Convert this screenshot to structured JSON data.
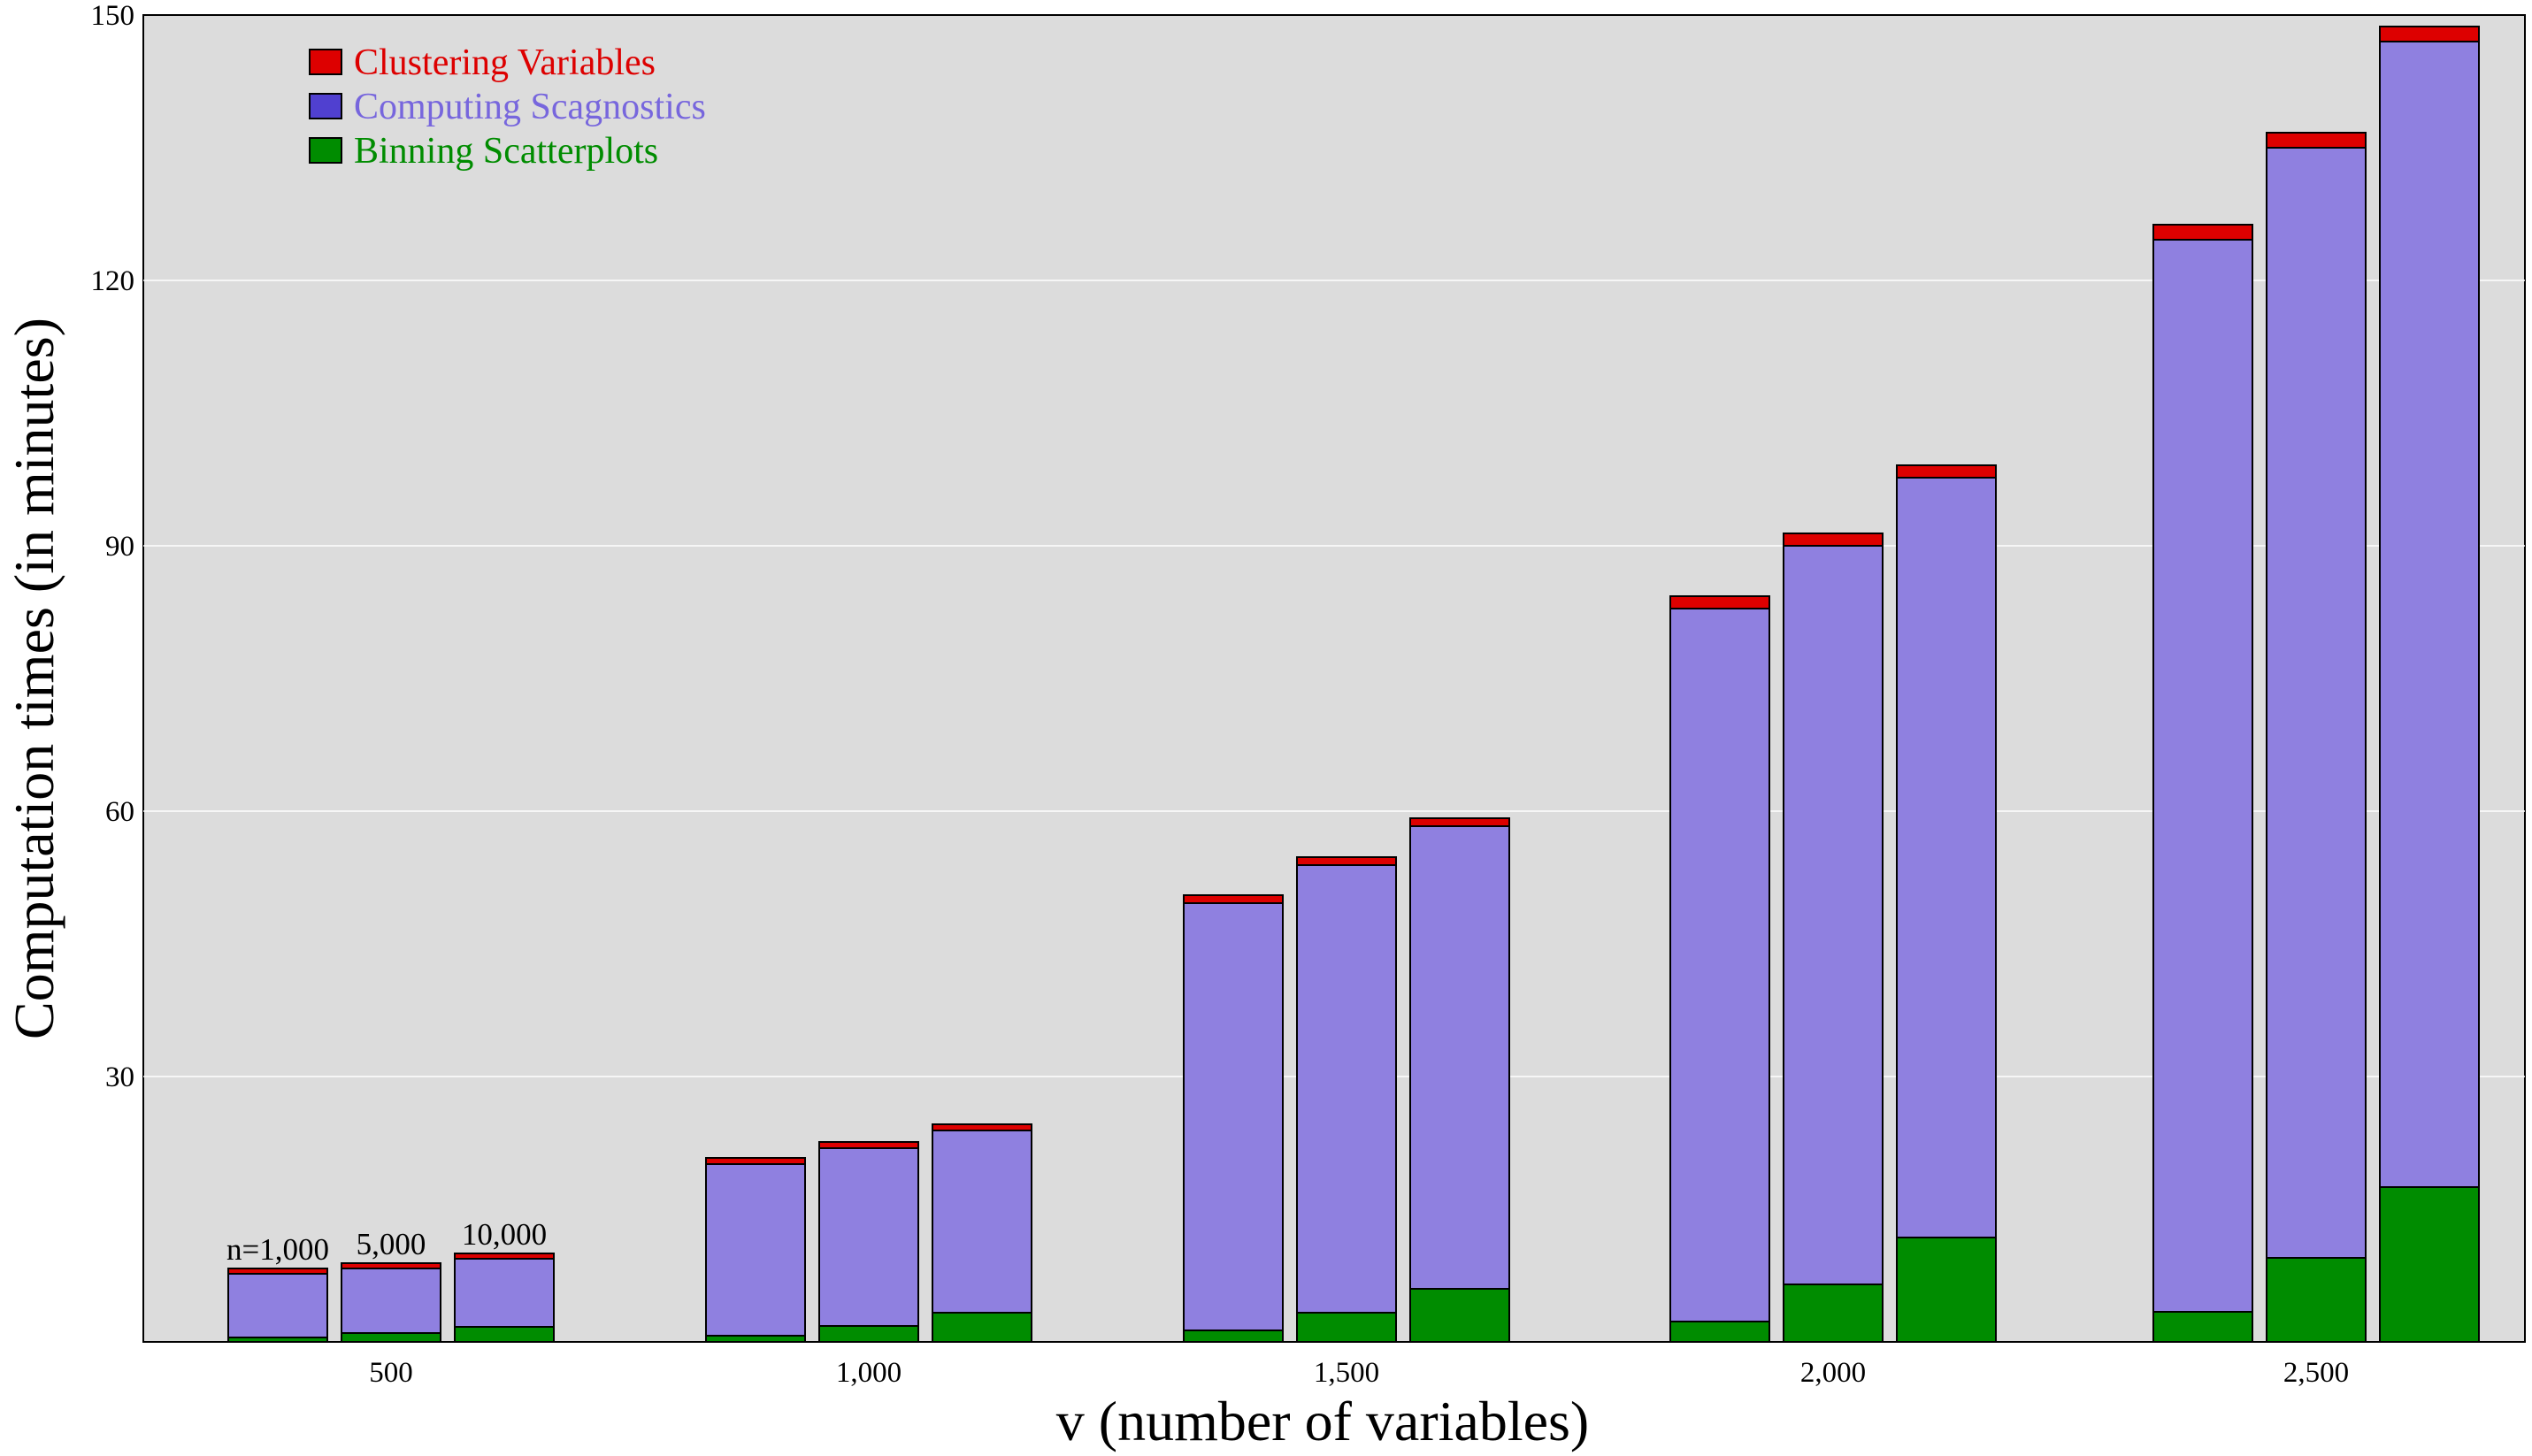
{
  "chart_data": {
    "type": "bar",
    "stacked": true,
    "title": "",
    "xlabel": "v (number of variables)",
    "ylabel": "Computation times (in minutes)",
    "ylim": [
      0,
      150
    ],
    "yticks": [
      "30",
      "60",
      "90",
      "120",
      "150"
    ],
    "ytick_values": [
      30,
      60,
      90,
      120,
      150
    ],
    "grid": true,
    "legend_position": "top-left",
    "categories": [
      "500",
      "1,000",
      "1,500",
      "2,000",
      "2,500"
    ],
    "subgroups": [
      "n=1,000",
      "5,000",
      "10,000"
    ],
    "series": [
      {
        "name": "Binning Scatterplots",
        "color": "#008c00",
        "values": [
          [
            0.5,
            1.0,
            1.7
          ],
          [
            0.7,
            1.8,
            3.3
          ],
          [
            1.3,
            3.3,
            6.0
          ],
          [
            2.3,
            6.5,
            11.8
          ],
          [
            3.4,
            9.5,
            17.5
          ]
        ]
      },
      {
        "name": "Computing Scagnostics",
        "color": "#8f80e0",
        "values": [
          [
            7.2,
            7.3,
            7.7
          ],
          [
            19.4,
            20.1,
            20.6
          ],
          [
            48.3,
            50.6,
            52.3
          ],
          [
            80.6,
            83.5,
            85.9
          ],
          [
            121.2,
            125.5,
            129.5
          ]
        ]
      },
      {
        "name": "Clustering Variables",
        "color": "#dd0000",
        "values": [
          [
            0.6,
            0.6,
            0.6
          ],
          [
            0.7,
            0.7,
            0.7
          ],
          [
            0.9,
            0.9,
            0.9
          ],
          [
            1.4,
            1.4,
            1.4
          ],
          [
            1.7,
            1.7,
            1.7
          ]
        ]
      }
    ]
  },
  "legend": {
    "items": [
      {
        "label": "Clustering Variables",
        "color": "#dd0000",
        "text_color": "#dd0000"
      },
      {
        "label": "Computing Scagnostics",
        "color": "#5040d0",
        "text_color": "#7766dd"
      },
      {
        "label": "Binning Scatterplots",
        "color": "#008c00",
        "text_color": "#008c00"
      }
    ]
  }
}
